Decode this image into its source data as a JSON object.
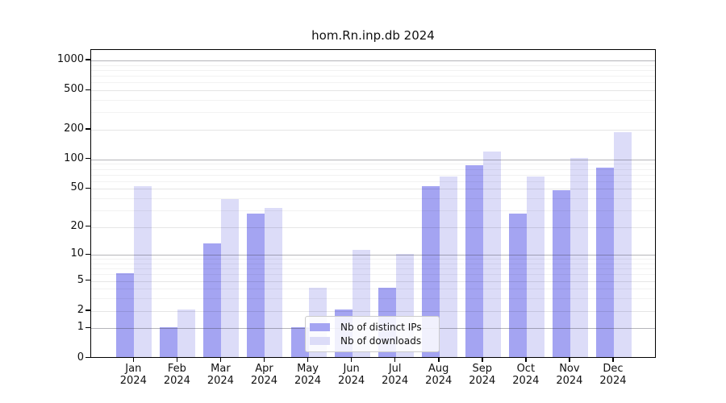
{
  "title": "hom.Rn.inp.db 2024",
  "chart_data": {
    "type": "bar",
    "title": "hom.Rn.inp.db 2024",
    "y_scale": "log10(value+1)",
    "grid": true,
    "legend_position": "lower center",
    "categories": [
      "Jan",
      "Feb",
      "Mar",
      "Apr",
      "May",
      "Jun",
      "Jul",
      "Aug",
      "Sep",
      "Oct",
      "Nov",
      "Dec"
    ],
    "x_year_label": "2024",
    "series": [
      {
        "name": "Nb of distinct IPs",
        "color": "#a4a4f2",
        "values": [
          6,
          1,
          13,
          27,
          1,
          2,
          4,
          52,
          84,
          27,
          47,
          80
        ]
      },
      {
        "name": "Nb of downloads",
        "color": "#dcdcf8",
        "values": [
          52,
          2,
          38,
          31,
          4,
          11,
          10,
          65,
          117,
          65,
          100,
          185
        ]
      }
    ],
    "y_ticks_labeled": [
      0,
      1,
      2,
      5,
      10,
      20,
      50,
      100,
      200,
      500,
      1000
    ],
    "y_ticks_minor": [
      3,
      4,
      6,
      7,
      8,
      9,
      30,
      40,
      60,
      70,
      80,
      90,
      300,
      400,
      600,
      700,
      800,
      900
    ],
    "y_decade_ticks": [
      1,
      10,
      100,
      1000
    ],
    "ylim": [
      0,
      1275
    ]
  },
  "colors": {
    "bar_distinct_ips": "#a4a4f2",
    "bar_downloads": "#dcdcf8",
    "axis": "#000000",
    "legend_border": "#cccccc"
  }
}
